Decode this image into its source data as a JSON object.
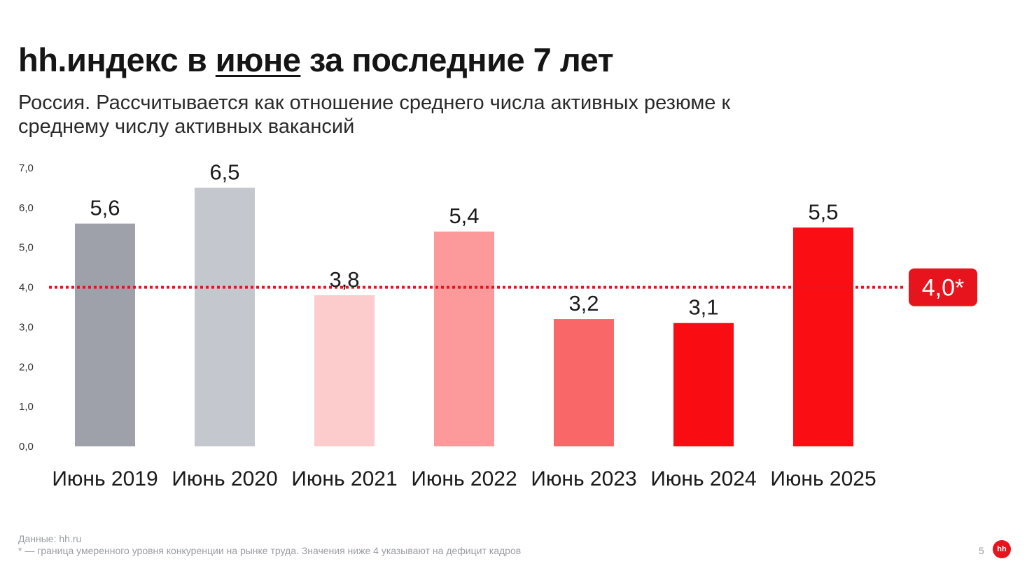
{
  "title": {
    "before": "hh.индекс в ",
    "highlight": "июне",
    "after": " за последние 7 лет"
  },
  "subtitle": "Россия. Рассчитывается как отношение среднего числа активных резюме к среднему числу активных вакансий",
  "footer": {
    "source": "Данные: hh.ru",
    "note": "* — граница умеренного уровня конкуренции на рынке труда. Значения ниже 4 указывают на дефицит кадров",
    "page_number": "5",
    "logo_text": "hh"
  },
  "chart_data": {
    "type": "bar",
    "title": "",
    "xlabel": "",
    "ylabel": "",
    "ylim": [
      0,
      7
    ],
    "y_ticks": [
      "0,0",
      "1,0",
      "2,0",
      "3,0",
      "4,0",
      "5,0",
      "6,0",
      "7,0"
    ],
    "categories": [
      "Июнь 2019",
      "Июнь 2020",
      "Июнь 2021",
      "Июнь 2022",
      "Июнь 2023",
      "Июнь 2024",
      "Июнь 2025"
    ],
    "values": [
      5.6,
      6.5,
      3.8,
      5.4,
      3.2,
      3.1,
      5.5
    ],
    "value_labels": [
      "5,6",
      "6,5",
      "3,8",
      "5,4",
      "3,2",
      "3,1",
      "5,5"
    ],
    "colors": [
      "#9ea1aa",
      "#c4c7ce",
      "#fccbcc",
      "#fc999b",
      "#fa6769",
      "#fa0d12",
      "#fb0e13"
    ],
    "grid": false,
    "reference_line": {
      "value": 4.0,
      "label": "4,0*",
      "color": "#e8141d",
      "style": "dotted"
    }
  }
}
